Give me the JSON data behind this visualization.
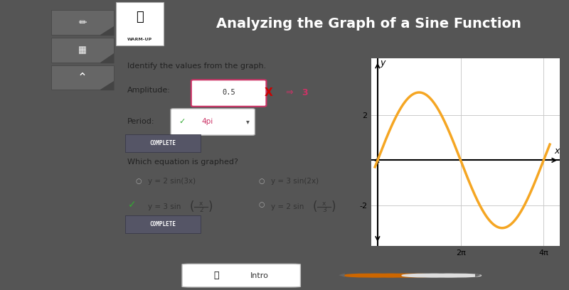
{
  "title": "Analyzing the Graph of a Sine Function",
  "header_bg": "#3d3d5c",
  "header_text_color": "#ffffff",
  "content_bg": "#ffffff",
  "left_dark_bg": "#555555",
  "outer_bg": "#555555",
  "question_text": "Identify the values from the graph.",
  "amplitude_label": "Amplitude:",
  "amplitude_input": "0.5",
  "amplitude_wrong_mark": "X",
  "amplitude_correct": "3",
  "period_label": "Period:",
  "period_value": "4pi",
  "complete_label": "COMPLETE",
  "which_eq_text": "Which equation is graphed?",
  "curve_color": "#f5a623",
  "curve_linewidth": 2.5,
  "amplitude": 3,
  "period_factor": 0.5,
  "xmin": -0.5,
  "xmax": 13.8,
  "ymin": -3.8,
  "ymax": 4.5,
  "x_ticks": [
    6.283185307,
    12.566370614
  ],
  "x_tick_labels": [
    "2π",
    "4π"
  ],
  "y_ticks": [
    -2,
    2
  ],
  "grid_color": "#cccccc",
  "axis_color": "#000000",
  "bottom_bg": "#999999",
  "nav_dot_active": "#cc6600",
  "nav_dot_inactive": "#dddddd",
  "complete_bg": "#555566",
  "complete_text": "#ffffff",
  "pink_color": "#cc3366",
  "green_color": "#33aa33",
  "red_color": "#cc0000"
}
